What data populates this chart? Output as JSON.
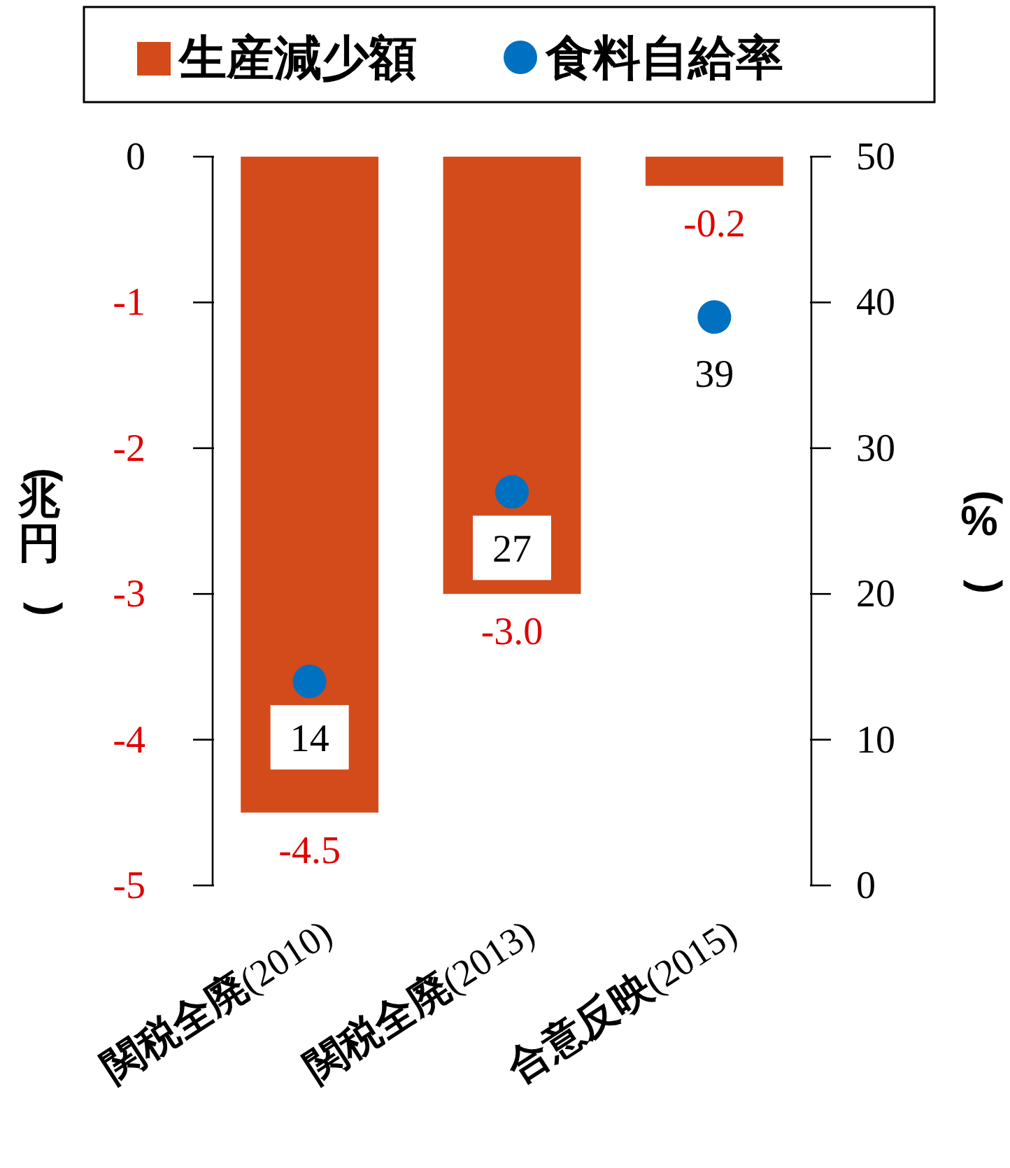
{
  "chart_data": {
    "type": "bar",
    "categories": [
      "関税全廃(2010)",
      "関税全廃(2013)",
      "合意反映(2015)"
    ],
    "ylabel": "(兆円)",
    "y2label": "(%)",
    "ylim": [
      -5,
      0
    ],
    "yticks": [
      -5,
      -4,
      -3,
      -2,
      -1,
      0
    ],
    "y2lim": [
      0,
      50
    ],
    "y2ticks": [
      0,
      10,
      20,
      30,
      40,
      50
    ],
    "legend": "top",
    "marker": "circle",
    "grid": false,
    "series": [
      {
        "name": "生産減少額",
        "color": "#d34b1a",
        "values": [
          -4.5,
          -3.0,
          -0.2
        ],
        "value_labels": [
          "-4.5",
          "-3.0",
          "-0.2"
        ]
      },
      {
        "name": "食料自給率",
        "type": "scatter",
        "axis": "y2",
        "color": "#0070c0",
        "values": [
          14,
          27,
          39
        ],
        "value_labels": [
          "14",
          "27",
          "39"
        ]
      }
    ]
  }
}
